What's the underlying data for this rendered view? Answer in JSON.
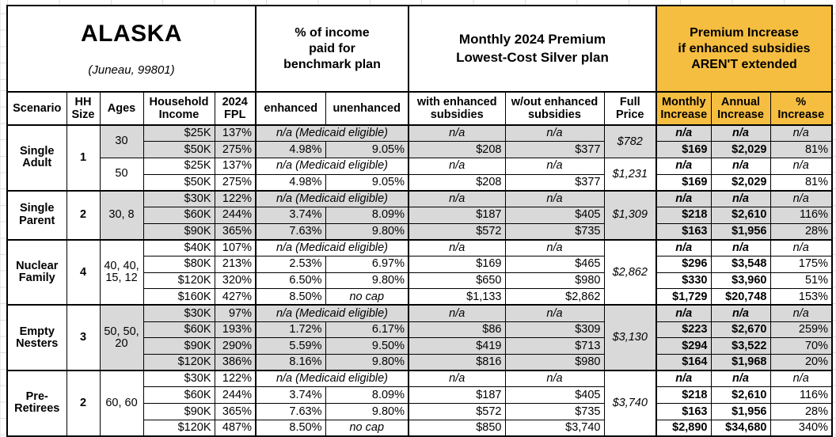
{
  "colors": {
    "orange": "#F6BE40",
    "gray": "#D9D9D9",
    "border": "#000000",
    "gridline": "#DEDEDE"
  },
  "title": {
    "region": "ALASKA",
    "location": "(Juneau, 99801)"
  },
  "group_headers": {
    "benchmark": "% of income\npaid for\nbenchmark plan",
    "premium": "Monthly 2024 Premium\nLowest-Cost Silver plan",
    "increase": "Premium Increase\nif enhanced subsidies\nAREN'T extended"
  },
  "column_headers": {
    "scenario": "Scenario",
    "hh_size": "HH\nSize",
    "ages": "Ages",
    "income": "Household\nIncome",
    "fpl": "2024\nFPL",
    "enhanced": "enhanced",
    "unenhanced": "unenhanced",
    "with_subsidies": "with enhanced\nsubsidies",
    "wout_subsidies": "w/out enhanced\nsubsidies",
    "full_price": "Full\nPrice",
    "monthly_increase": "Monthly\nIncrease",
    "annual_increase": "Annual\nIncrease",
    "pct_increase": "%\nIncrease"
  },
  "na_text": "n/a",
  "medicaid_text": "n/a (Medicaid eligible)",
  "no_cap_text": "no cap",
  "groups": [
    {
      "scenario": "Single Adult",
      "hh_size": "1",
      "age_blocks": [
        {
          "ages": "30",
          "shaded": true,
          "full_price": "$782",
          "rows": [
            {
              "income": "$25K",
              "fpl": "137%",
              "medicaid": true
            },
            {
              "income": "$50K",
              "fpl": "275%",
              "enhanced": "4.98%",
              "unenhanced": "9.05%",
              "with_sub": "$208",
              "wout_sub": "$377",
              "monthly": "$169",
              "annual": "$2,029",
              "pct": "81%"
            }
          ]
        },
        {
          "ages": "50",
          "shaded": false,
          "full_price": "$1,231",
          "rows": [
            {
              "income": "$25K",
              "fpl": "137%",
              "medicaid": true
            },
            {
              "income": "$50K",
              "fpl": "275%",
              "enhanced": "4.98%",
              "unenhanced": "9.05%",
              "with_sub": "$208",
              "wout_sub": "$377",
              "monthly": "$169",
              "annual": "$2,029",
              "pct": "81%"
            }
          ]
        }
      ]
    },
    {
      "scenario": "Single Parent",
      "hh_size": "2",
      "age_blocks": [
        {
          "ages": "30, 8",
          "shaded": true,
          "full_price": "$1,309",
          "rows": [
            {
              "income": "$30K",
              "fpl": "122%",
              "medicaid": true
            },
            {
              "income": "$60K",
              "fpl": "244%",
              "enhanced": "3.74%",
              "unenhanced": "8.09%",
              "with_sub": "$187",
              "wout_sub": "$405",
              "monthly": "$218",
              "annual": "$2,610",
              "pct": "116%"
            },
            {
              "income": "$90K",
              "fpl": "365%",
              "enhanced": "7.63%",
              "unenhanced": "9.80%",
              "with_sub": "$572",
              "wout_sub": "$735",
              "monthly": "$163",
              "annual": "$1,956",
              "pct": "28%"
            }
          ]
        }
      ]
    },
    {
      "scenario": "Nuclear Family",
      "hh_size": "4",
      "age_blocks": [
        {
          "ages": "40, 40, 15, 12",
          "shaded": false,
          "full_price": "$2,862",
          "rows": [
            {
              "income": "$40K",
              "fpl": "107%",
              "medicaid": true
            },
            {
              "income": "$80K",
              "fpl": "213%",
              "enhanced": "2.53%",
              "unenhanced": "6.97%",
              "with_sub": "$169",
              "wout_sub": "$465",
              "monthly": "$296",
              "annual": "$3,548",
              "pct": "175%"
            },
            {
              "income": "$120K",
              "fpl": "320%",
              "enhanced": "6.50%",
              "unenhanced": "9.80%",
              "with_sub": "$650",
              "wout_sub": "$980",
              "monthly": "$330",
              "annual": "$3,960",
              "pct": "51%"
            },
            {
              "income": "$160K",
              "fpl": "427%",
              "enhanced": "8.50%",
              "unenhanced": "no cap",
              "with_sub": "$1,133",
              "wout_sub": "$2,862",
              "monthly": "$1,729",
              "annual": "$20,748",
              "pct": "153%"
            }
          ]
        }
      ]
    },
    {
      "scenario": "Empty Nesters",
      "hh_size": "3",
      "age_blocks": [
        {
          "ages": "50, 50, 20",
          "shaded": true,
          "full_price": "$3,130",
          "rows": [
            {
              "income": "$30K",
              "fpl": "97%",
              "medicaid": true
            },
            {
              "income": "$60K",
              "fpl": "193%",
              "enhanced": "1.72%",
              "unenhanced": "6.17%",
              "with_sub": "$86",
              "wout_sub": "$309",
              "monthly": "$223",
              "annual": "$2,670",
              "pct": "259%"
            },
            {
              "income": "$90K",
              "fpl": "290%",
              "enhanced": "5.59%",
              "unenhanced": "9.50%",
              "with_sub": "$419",
              "wout_sub": "$713",
              "monthly": "$294",
              "annual": "$3,522",
              "pct": "70%"
            },
            {
              "income": "$120K",
              "fpl": "386%",
              "enhanced": "8.16%",
              "unenhanced": "9.80%",
              "with_sub": "$816",
              "wout_sub": "$980",
              "monthly": "$164",
              "annual": "$1,968",
              "pct": "20%"
            }
          ]
        }
      ]
    },
    {
      "scenario": "Pre-Retirees",
      "hh_size": "2",
      "age_blocks": [
        {
          "ages": "60, 60",
          "shaded": false,
          "full_price": "$3,740",
          "rows": [
            {
              "income": "$30K",
              "fpl": "122%",
              "medicaid": true
            },
            {
              "income": "$60K",
              "fpl": "244%",
              "enhanced": "3.74%",
              "unenhanced": "8.09%",
              "with_sub": "$187",
              "wout_sub": "$405",
              "monthly": "$218",
              "annual": "$2,610",
              "pct": "116%"
            },
            {
              "income": "$90K",
              "fpl": "365%",
              "enhanced": "7.63%",
              "unenhanced": "9.80%",
              "with_sub": "$572",
              "wout_sub": "$735",
              "monthly": "$163",
              "annual": "$1,956",
              "pct": "28%"
            },
            {
              "income": "$120K",
              "fpl": "487%",
              "enhanced": "8.50%",
              "unenhanced": "no cap",
              "with_sub": "$850",
              "wout_sub": "$3,740",
              "monthly": "$2,890",
              "annual": "$34,680",
              "pct": "340%"
            }
          ]
        }
      ]
    }
  ]
}
